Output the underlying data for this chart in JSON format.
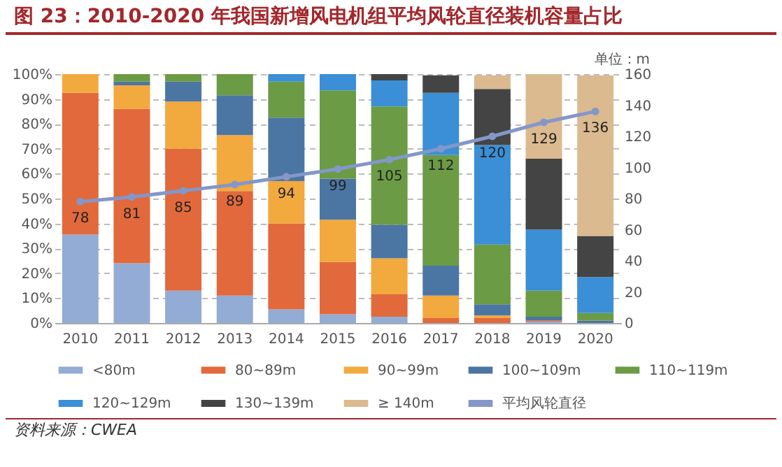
{
  "chart_data": {
    "type": "bar",
    "title": "图 23：2010-2020 年我国新增风电机组平均风轮直径装机容量占比",
    "categories": [
      "2010",
      "2011",
      "2012",
      "2013",
      "2014",
      "2015",
      "2016",
      "2017",
      "2018",
      "2019",
      "2020"
    ],
    "stacked": true,
    "series": [
      {
        "name": "<80m",
        "color": "#93acd6",
        "values": [
          35.5,
          24,
          13,
          11,
          5.5,
          3.5,
          2.5,
          null,
          null,
          0.5,
          null
        ]
      },
      {
        "name": "80~89m",
        "color": "#e2693b",
        "values": [
          57,
          62,
          57,
          42,
          34.5,
          21,
          9,
          2,
          2,
          0.5,
          0
        ]
      },
      {
        "name": "90~99m",
        "color": "#f2a93e",
        "values": [
          7.5,
          9.5,
          19,
          22.5,
          17,
          17,
          14.5,
          9,
          1,
          0,
          0
        ]
      },
      {
        "name": "100~109m",
        "color": "#4b76a3",
        "values": [
          0,
          1.5,
          8,
          16,
          25.5,
          16.5,
          13.5,
          12,
          4.5,
          1.5,
          1
        ]
      },
      {
        "name": "110~119m",
        "color": "#6b9b45",
        "values": [
          0,
          3,
          3,
          8.5,
          14.5,
          35.5,
          47.5,
          44.5,
          24,
          10.5,
          3
        ]
      },
      {
        "name": "120~129m",
        "color": "#3a8fd6",
        "values": [
          0,
          0,
          0,
          0,
          3,
          6.5,
          10.5,
          25,
          40,
          24.5,
          14.5
        ]
      },
      {
        "name": "130~139m",
        "color": "#444444",
        "values": [
          0,
          0,
          0,
          0,
          0,
          0,
          2.5,
          7,
          22.5,
          28.5,
          16.5
        ]
      },
      {
        "name": "≥ 140m",
        "color": "#dbba8f",
        "values": [
          0,
          0,
          0,
          0,
          0,
          0,
          0,
          0,
          5.5,
          34,
          64.5
        ]
      },
      {
        "name": "平均风轮直径",
        "type": "line",
        "axis": "y2",
        "color": "#8497c9",
        "marker": "circle",
        "line_style": "solid",
        "values": [
          78,
          81,
          85,
          89,
          94,
          99,
          105,
          112,
          120,
          129,
          136
        ],
        "value_labels": [
          "78",
          "81",
          "85",
          "89",
          "94",
          "99",
          "105",
          "112",
          "120",
          "129",
          "136"
        ]
      }
    ],
    "ylim": [
      0,
      100
    ],
    "yticks": [
      {
        "value": 0,
        "label": "0%"
      },
      {
        "value": 10,
        "label": "10%"
      },
      {
        "value": 20,
        "label": "20%"
      },
      {
        "value": 30,
        "label": "30%"
      },
      {
        "value": 40,
        "label": "40%"
      },
      {
        "value": 50,
        "label": "50%"
      },
      {
        "value": 60,
        "label": "60%"
      },
      {
        "value": 70,
        "label": "70%"
      },
      {
        "value": 80,
        "label": "80%"
      },
      {
        "value": 90,
        "label": "90%"
      },
      {
        "value": 100,
        "label": "100%"
      }
    ],
    "y2lim": [
      0,
      160
    ],
    "y2ticks": [
      0,
      20,
      40,
      60,
      80,
      100,
      120,
      140,
      160
    ],
    "y2label": "单位：m",
    "grid": "y",
    "legend": "bottom",
    "annotations": [
      "资料来源：CWEA"
    ]
  }
}
